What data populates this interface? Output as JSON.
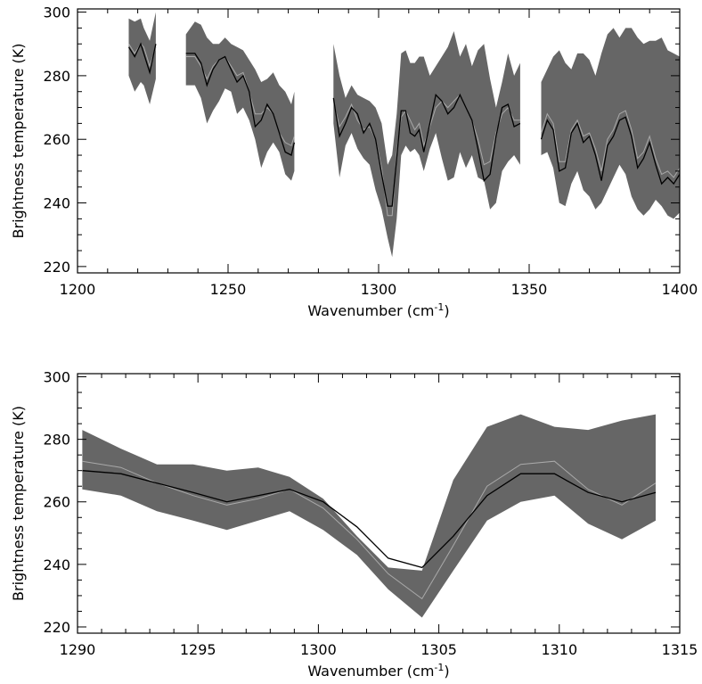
{
  "chart_data": [
    {
      "type": "area",
      "xlabel": "Wavenumber (cm",
      "xlabel_sup": "-1",
      "xlabel_close": ")",
      "ylabel": "Brightness temperature (K)",
      "xlim": [
        1200,
        1400
      ],
      "ylim": [
        218,
        301
      ],
      "xticks": [
        1200,
        1250,
        1300,
        1350,
        1400
      ],
      "yticks": [
        220,
        240,
        260,
        280,
        300
      ],
      "grid": false,
      "segments": [
        {
          "x": [
            1217,
            1219,
            1221,
            1222,
            1224,
            1226
          ],
          "lower": [
            280,
            275,
            278,
            277,
            271,
            279
          ],
          "upper": [
            298,
            297,
            298,
            295,
            291,
            300
          ],
          "mean": [
            289,
            286,
            290,
            287,
            281,
            290
          ],
          "light": [
            290,
            287,
            290,
            289,
            283,
            289
          ]
        },
        {
          "x": [
            1236,
            1239,
            1241,
            1243,
            1245,
            1247,
            1249,
            1251,
            1253,
            1255,
            1257,
            1259,
            1261,
            1263,
            1265,
            1267,
            1269,
            1271,
            1272
          ],
          "lower": [
            277,
            277,
            273,
            265,
            269,
            272,
            276,
            275,
            268,
            270,
            266,
            260,
            251,
            256,
            259,
            256,
            249,
            247,
            250
          ],
          "upper": [
            293,
            297,
            296,
            292,
            290,
            290,
            292,
            290,
            289,
            288,
            285,
            282,
            278,
            279,
            281,
            277,
            275,
            271,
            275
          ],
          "mean": [
            287,
            287,
            284,
            277,
            282,
            285,
            286,
            282,
            278,
            280,
            275,
            264,
            266,
            271,
            268,
            262,
            256,
            255,
            259
          ],
          "light": [
            286,
            286,
            283,
            279,
            283,
            285,
            286,
            283,
            280,
            281,
            275,
            268,
            268,
            270,
            268,
            262,
            259,
            258,
            261
          ]
        },
        {
          "x": [
            1285,
            1287,
            1289,
            1291,
            1293,
            1295,
            1297,
            1299,
            1301,
            1303,
            1304.5,
            1306,
            1307.5,
            1309,
            1310.5,
            1312,
            1313.5,
            1315,
            1317,
            1319,
            1321,
            1323,
            1325,
            1327,
            1329,
            1331,
            1333,
            1335,
            1337,
            1339,
            1341,
            1343,
            1345,
            1347
          ],
          "lower": [
            265,
            248,
            258,
            262,
            257,
            254,
            252,
            244,
            238,
            229,
            223,
            235,
            255,
            258,
            256,
            257,
            255,
            250,
            257,
            262,
            254,
            247,
            248,
            256,
            251,
            255,
            248,
            247,
            238,
            240,
            250,
            253,
            255,
            252
          ],
          "upper": [
            290,
            280,
            273,
            277,
            274,
            273,
            272,
            270,
            265,
            252,
            255,
            268,
            287,
            288,
            284,
            284,
            286,
            286,
            280,
            283,
            286,
            289,
            294,
            286,
            290,
            283,
            288,
            290,
            279,
            270,
            278,
            287,
            280,
            284
          ],
          "mean": [
            273,
            261,
            265,
            270,
            268,
            262,
            265,
            260,
            249,
            239,
            239,
            254,
            269,
            269,
            262,
            261,
            263,
            256,
            265,
            274,
            272,
            268,
            270,
            274,
            270,
            266,
            257,
            247,
            249,
            261,
            270,
            271,
            264,
            265
          ],
          "light": [
            272,
            264,
            267,
            271,
            266,
            263,
            264,
            260,
            251,
            236,
            236,
            256,
            267,
            269,
            266,
            263,
            265,
            258,
            264,
            270,
            272,
            270,
            272,
            274,
            270,
            266,
            260,
            252,
            253,
            262,
            268,
            270,
            266,
            266
          ]
        },
        {
          "x": [
            1354,
            1356,
            1358,
            1360,
            1362,
            1364,
            1366,
            1368,
            1370,
            1372,
            1374,
            1376,
            1378,
            1380,
            1382,
            1384,
            1386,
            1388,
            1390,
            1392,
            1394,
            1396,
            1398,
            1400
          ],
          "lower": [
            255,
            256,
            251,
            240,
            239,
            246,
            250,
            244,
            242,
            238,
            240,
            244,
            248,
            252,
            249,
            242,
            238,
            236,
            238,
            241,
            239,
            236,
            235,
            237
          ],
          "upper": [
            278,
            282,
            286,
            288,
            284,
            282,
            287,
            287,
            285,
            280,
            287,
            293,
            295,
            292,
            295,
            295,
            292,
            290,
            291,
            291,
            292,
            288,
            287,
            286
          ],
          "mean": [
            260,
            266,
            263,
            250,
            251,
            262,
            265,
            259,
            261,
            255,
            247,
            258,
            261,
            266,
            267,
            261,
            251,
            254,
            259,
            252,
            246,
            248,
            246,
            249
          ],
          "light": [
            262,
            268,
            265,
            253,
            253,
            263,
            266,
            261,
            262,
            257,
            250,
            260,
            263,
            268,
            269,
            263,
            254,
            256,
            261,
            254,
            249,
            250,
            248,
            251
          ]
        }
      ]
    },
    {
      "type": "area",
      "xlabel": "Wavenumber (cm",
      "xlabel_sup": "-1",
      "xlabel_close": ")",
      "ylabel": "Brightness temperature (K)",
      "xlim": [
        1290,
        1315
      ],
      "ylim": [
        218,
        301
      ],
      "xticks": [
        1290,
        1295,
        1300,
        1305,
        1310,
        1315
      ],
      "yticks": [
        220,
        240,
        260,
        280,
        300
      ],
      "grid": false,
      "segments": [
        {
          "x": [
            1290.2,
            1291.8,
            1293.3,
            1294.8,
            1296.2,
            1297.5,
            1298.8,
            1300.2,
            1301.6,
            1302.9,
            1304.3,
            1305.6,
            1307.0,
            1308.4,
            1309.8,
            1311.2,
            1312.6,
            1314.0
          ],
          "lower": [
            264,
            262,
            257,
            254,
            251,
            254,
            257,
            251,
            243,
            232,
            223,
            238,
            254,
            260,
            262,
            253,
            248,
            254
          ],
          "upper": [
            283,
            277,
            272,
            272,
            270,
            271,
            268,
            261,
            249,
            239,
            238,
            267,
            284,
            288,
            284,
            283,
            286,
            288
          ],
          "mean": [
            270,
            269,
            266,
            263,
            260,
            262,
            264,
            260,
            252,
            242,
            239,
            249,
            262,
            269,
            269,
            263,
            260,
            263
          ],
          "light": [
            273,
            271,
            266,
            262,
            259,
            261,
            264,
            258,
            248,
            237,
            229,
            246,
            265,
            272,
            273,
            264,
            259,
            266
          ]
        }
      ]
    }
  ]
}
